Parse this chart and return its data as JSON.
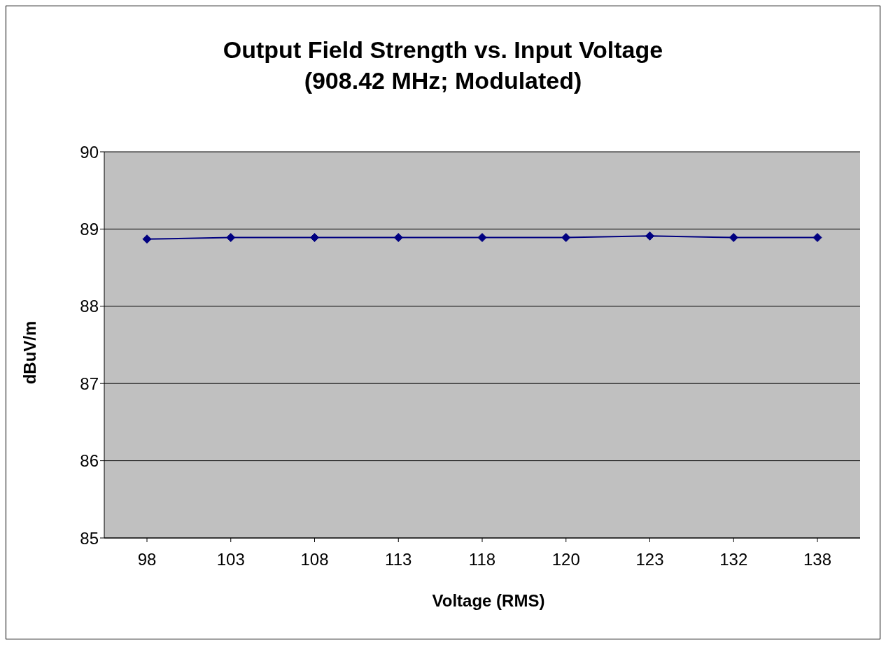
{
  "chart_data": {
    "type": "line",
    "title": "Output Field Strength vs. Input Voltage",
    "subtitle": "(908.42 MHz; Modulated)",
    "xlabel": "Voltage (RMS)",
    "ylabel": "dBuV/m",
    "categories": [
      "98",
      "103",
      "108",
      "113",
      "118",
      "120",
      "123",
      "132",
      "138"
    ],
    "series": [
      {
        "color": "#000080",
        "values": [
          88.87,
          88.89,
          88.89,
          88.89,
          88.89,
          88.89,
          88.91,
          88.89,
          88.89
        ]
      }
    ],
    "ylim": [
      85,
      90
    ],
    "yticks": [
      85,
      86,
      87,
      88,
      89,
      90
    ],
    "grid": "y",
    "marker": "diamond",
    "legend": false
  }
}
